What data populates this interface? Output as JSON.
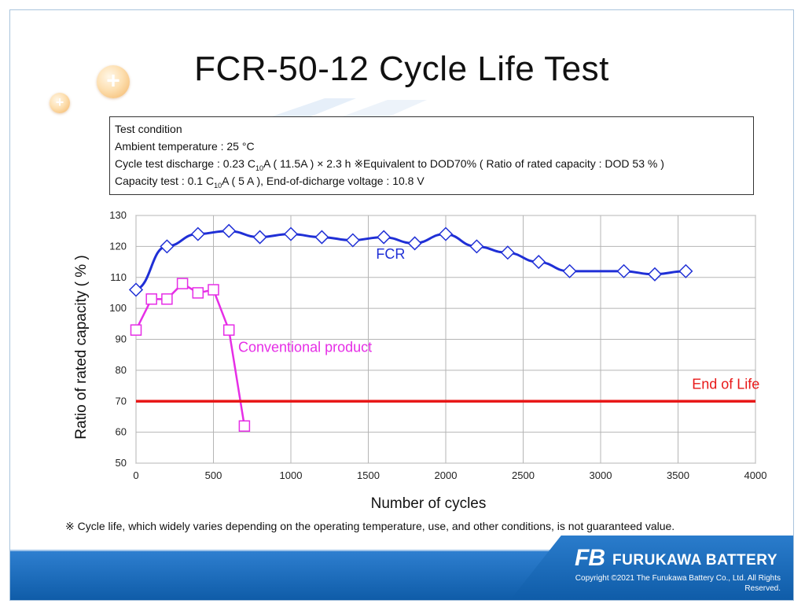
{
  "title": "FCR-50-12 Cycle Life Test",
  "test_condition": {
    "heading": "Test condition",
    "ambient": "Ambient temperature : 25 °C",
    "cycle_prefix": "Cycle test discharge : 0.23 C",
    "cycle_sub": "10",
    "cycle_suffix": "A ( 11.5A ) × 2.3 h ※Equivalent to DOD70% ( Ratio of rated capacity : DOD 53 % )",
    "capacity_prefix": "Capacity test : 0.1 C",
    "capacity_sub": "10",
    "capacity_suffix": "A ( 5 A ), End-of-dicharge voltage : 10.8 V"
  },
  "note": "※ Cycle life, which widely varies depending on the operating temperature, use, and other conditions, is not guaranteed value.",
  "footer": {
    "logo": "FB",
    "brand": "FURUKAWA BATTERY",
    "copyright_line1": "Copyright ©2021 The Furukawa Battery Co., Ltd. All Rights",
    "copyright_line2": "Reserved."
  },
  "decor": {
    "bubble_icon": "plus-icon",
    "bubble_glyph": "+"
  },
  "chart_data": {
    "type": "line",
    "xlabel": "Number of cycles",
    "ylabel": "Ratio of rated capacity ( % )",
    "xlim": [
      0,
      4000
    ],
    "ylim": [
      50,
      130
    ],
    "xticks": [
      0,
      500,
      1000,
      1500,
      2000,
      2500,
      3000,
      3500,
      4000
    ],
    "yticks": [
      50,
      60,
      70,
      80,
      90,
      100,
      110,
      120,
      130
    ],
    "grid": true,
    "series": [
      {
        "name": "FCR",
        "color": "#1f2fd6",
        "marker": "diamond",
        "points": [
          [
            0,
            106
          ],
          [
            200,
            120
          ],
          [
            400,
            124
          ],
          [
            600,
            125
          ],
          [
            800,
            123
          ],
          [
            1000,
            124
          ],
          [
            1200,
            123
          ],
          [
            1400,
            122
          ],
          [
            1600,
            123
          ],
          [
            1800,
            121
          ],
          [
            2000,
            124
          ],
          [
            2200,
            120
          ],
          [
            2400,
            118
          ],
          [
            2600,
            115
          ],
          [
            2800,
            112
          ],
          [
            3150,
            112
          ],
          [
            3350,
            111
          ],
          [
            3550,
            112
          ]
        ]
      },
      {
        "name": "Conventional product",
        "color": "#e62ee6",
        "marker": "square",
        "points": [
          [
            0,
            93
          ],
          [
            100,
            103
          ],
          [
            200,
            103
          ],
          [
            300,
            108
          ],
          [
            400,
            105
          ],
          [
            500,
            106
          ],
          [
            600,
            93
          ],
          [
            700,
            62
          ]
        ]
      },
      {
        "name": "End of Life",
        "color": "#e81818",
        "marker": "none",
        "points": [
          [
            0,
            70
          ],
          [
            4000,
            70
          ]
        ]
      }
    ],
    "annotations": [
      {
        "text": "FCR",
        "x": 1550,
        "y": 116,
        "color": "#1f2fd6"
      },
      {
        "text": "Conventional product",
        "x": 660,
        "y": 86,
        "color": "#e62ee6"
      },
      {
        "text": "End of Life",
        "x": 3590,
        "y": 74,
        "color": "#e81818"
      }
    ]
  }
}
